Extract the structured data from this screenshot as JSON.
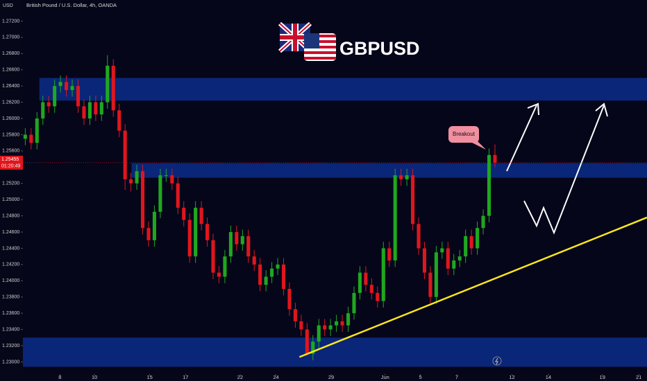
{
  "chart_data": {
    "type": "candlestick",
    "title": "British Pound / U.S. Dollar, 4h, OANDA",
    "currency": "USD",
    "logo_text": "GBPUSD",
    "annotation": "Breakout",
    "last_price": {
      "value": 1.25455,
      "label": "1.25455"
    },
    "countdown": "01:20:49",
    "xlim": [
      -0.4,
      105.9
    ],
    "xticks": [
      {
        "value": 5.9,
        "label": "8"
      },
      {
        "value": 11.8,
        "label": "10"
      },
      {
        "value": 21.2,
        "label": "15"
      },
      {
        "value": 27.3,
        "label": "17"
      },
      {
        "value": 36.6,
        "label": "22"
      },
      {
        "value": 42.7,
        "label": "24"
      },
      {
        "value": 52.1,
        "label": "29"
      },
      {
        "value": 61.3,
        "label": "Jun"
      },
      {
        "value": 67.3,
        "label": "5"
      },
      {
        "value": 73.5,
        "label": "7"
      },
      {
        "value": 82.9,
        "label": "12"
      },
      {
        "value": 89.1,
        "label": "14"
      },
      {
        "value": 98.3,
        "label": "19"
      },
      {
        "value": 104.5,
        "label": "21"
      }
    ],
    "ylim": [
      1.2285,
      1.2746
    ],
    "yticks": [
      {
        "value": 1.23,
        "label": "1.23000"
      },
      {
        "value": 1.232,
        "label": "1.23200"
      },
      {
        "value": 1.234,
        "label": "1.23400"
      },
      {
        "value": 1.236,
        "label": "1.23600"
      },
      {
        "value": 1.238,
        "label": "1.23800"
      },
      {
        "value": 1.24,
        "label": "1.24000"
      },
      {
        "value": 1.242,
        "label": "1.24200"
      },
      {
        "value": 1.244,
        "label": "1.24400"
      },
      {
        "value": 1.246,
        "label": "1.24600"
      },
      {
        "value": 1.248,
        "label": "1.24800"
      },
      {
        "value": 1.25,
        "label": "1.25000"
      },
      {
        "value": 1.252,
        "label": "1.25200"
      },
      {
        "value": 1.256,
        "label": "1.25600"
      },
      {
        "value": 1.258,
        "label": "1.25800"
      },
      {
        "value": 1.26,
        "label": "1.26000"
      },
      {
        "value": 1.262,
        "label": "1.26200"
      },
      {
        "value": 1.264,
        "label": "1.26400"
      },
      {
        "value": 1.266,
        "label": "1.26600"
      },
      {
        "value": 1.268,
        "label": "1.26800"
      },
      {
        "value": 1.27,
        "label": "1.27000"
      },
      {
        "value": 1.272,
        "label": "1.27200"
      }
    ],
    "up_color": "#1fa81f",
    "down_color": "#e0161d",
    "series": [
      {
        "name": "GBPUSD",
        "open": [
          1.2575,
          1.258,
          1.257,
          1.26,
          1.262,
          1.2615,
          1.264,
          1.2645,
          1.2635,
          1.264,
          1.2615,
          1.26,
          1.262,
          1.2605,
          1.262,
          1.2665,
          1.261,
          1.2585,
          1.2525,
          1.252,
          1.2535,
          1.2465,
          1.245,
          1.2485,
          1.253,
          1.253,
          1.252,
          1.249,
          1.2475,
          1.243,
          1.249,
          1.247,
          1.245,
          1.241,
          1.2405,
          1.243,
          1.246,
          1.2445,
          1.2455,
          1.243,
          1.242,
          1.2395,
          1.2405,
          1.2415,
          1.242,
          1.239,
          1.2365,
          1.235,
          1.234,
          1.231,
          1.2325,
          1.2345,
          1.234,
          1.2345,
          1.235,
          1.2345,
          1.236,
          1.2385,
          1.241,
          1.2395,
          1.2385,
          1.2375,
          1.244,
          1.2425,
          1.253,
          1.2525,
          1.253,
          1.247,
          1.244,
          1.241,
          1.238,
          1.2435,
          1.244,
          1.2415,
          1.2425,
          1.243,
          1.2455,
          1.244,
          1.2465,
          1.248,
          1.2555
        ],
        "high": [
          1.2588,
          1.2588,
          1.2608,
          1.2628,
          1.2628,
          1.2648,
          1.2653,
          1.2653,
          1.2648,
          1.2648,
          1.2623,
          1.2628,
          1.2628,
          1.2628,
          1.2678,
          1.2673,
          1.2618,
          1.2593,
          1.2533,
          1.2543,
          1.2543,
          1.2473,
          1.2493,
          1.2538,
          1.2538,
          1.2538,
          1.2528,
          1.2498,
          1.2483,
          1.2498,
          1.2498,
          1.2478,
          1.2458,
          1.2418,
          1.2438,
          1.2468,
          1.2468,
          1.2463,
          1.2463,
          1.2438,
          1.2428,
          1.2413,
          1.2423,
          1.2428,
          1.2428,
          1.2398,
          1.2373,
          1.2358,
          1.2348,
          1.2333,
          1.2353,
          1.2353,
          1.2353,
          1.2358,
          1.2358,
          1.2368,
          1.2393,
          1.2418,
          1.2418,
          1.2403,
          1.2393,
          1.2448,
          1.2448,
          1.2538,
          1.2538,
          1.2538,
          1.2538,
          1.2478,
          1.2448,
          1.2418,
          1.2443,
          1.2448,
          1.2448,
          1.2433,
          1.2438,
          1.2463,
          1.2463,
          1.2473,
          1.2488,
          1.2563,
          1.2568
        ],
        "low": [
          1.2567,
          1.2562,
          1.2562,
          1.2592,
          1.2607,
          1.2607,
          1.2632,
          1.2627,
          1.2627,
          1.2607,
          1.2592,
          1.2592,
          1.2597,
          1.2597,
          1.2612,
          1.2602,
          1.2577,
          1.2512,
          1.251,
          1.2512,
          1.2457,
          1.2442,
          1.2442,
          1.2477,
          1.2522,
          1.2512,
          1.2482,
          1.2467,
          1.2422,
          1.2422,
          1.2462,
          1.2442,
          1.2402,
          1.2397,
          1.2397,
          1.2422,
          1.2437,
          1.2437,
          1.2422,
          1.2412,
          1.2387,
          1.2387,
          1.2397,
          1.2407,
          1.2382,
          1.2357,
          1.2342,
          1.2332,
          1.2308,
          1.2302,
          1.2317,
          1.2332,
          1.2332,
          1.2337,
          1.2337,
          1.2337,
          1.2352,
          1.2377,
          1.2387,
          1.2377,
          1.2367,
          1.2367,
          1.2417,
          1.2417,
          1.2517,
          1.2517,
          1.2462,
          1.2432,
          1.2402,
          1.2372,
          1.2372,
          1.2427,
          1.2407,
          1.2407,
          1.2417,
          1.2422,
          1.2432,
          1.2432,
          1.2457,
          1.2472,
          1.254
        ],
        "close": [
          1.258,
          1.257,
          1.26,
          1.262,
          1.2615,
          1.264,
          1.2645,
          1.2635,
          1.264,
          1.2615,
          1.26,
          1.262,
          1.2605,
          1.262,
          1.2665,
          1.261,
          1.2585,
          1.2525,
          1.252,
          1.2535,
          1.2465,
          1.245,
          1.2485,
          1.253,
          1.253,
          1.252,
          1.249,
          1.2475,
          1.243,
          1.249,
          1.247,
          1.245,
          1.241,
          1.2405,
          1.243,
          1.246,
          1.2445,
          1.2455,
          1.243,
          1.242,
          1.2395,
          1.2405,
          1.2415,
          1.242,
          1.239,
          1.2365,
          1.235,
          1.234,
          1.231,
          1.2325,
          1.2345,
          1.234,
          1.2345,
          1.235,
          1.2345,
          1.236,
          1.2385,
          1.241,
          1.2395,
          1.2385,
          1.2375,
          1.244,
          1.2425,
          1.253,
          1.2525,
          1.253,
          1.247,
          1.244,
          1.241,
          1.238,
          1.2435,
          1.244,
          1.2415,
          1.2425,
          1.243,
          1.2455,
          1.244,
          1.2465,
          1.248,
          1.2555,
          1.25455
        ]
      }
    ],
    "zones": [
      {
        "start": 2.4,
        "from": 1.2622,
        "to": 1.265,
        "color": "#0c2d8a"
      },
      {
        "start": 18.1,
        "from": 1.2527,
        "to": 1.2545,
        "color": "#0c2d8a"
      },
      {
        "start": -0.4,
        "from": 1.2294,
        "to": 1.233,
        "color": "#0c2d8a"
      }
    ],
    "trendline": {
      "x": [
        46.7,
        105.9
      ],
      "y": [
        1.2306,
        1.2478
      ],
      "color": "#ffe81a"
    }
  }
}
